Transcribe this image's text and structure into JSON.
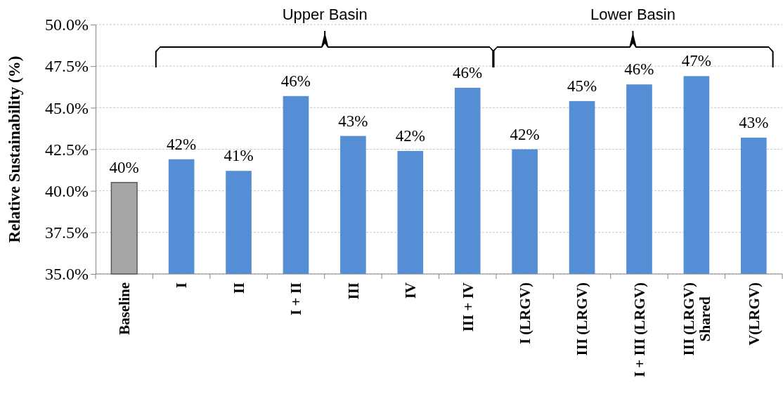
{
  "chart_data": {
    "type": "bar",
    "ylabel": "Relative Sustainability (%)",
    "categories": [
      "Baseline",
      "I",
      "II",
      "I + II",
      "III",
      "IV",
      "III + IV",
      "I (LRGV)",
      "III (LRGV)",
      "I + III (LRGV)",
      "III (LRGV)\nShared",
      "V(LRGV)"
    ],
    "values": [
      40.5,
      41.9,
      41.2,
      45.7,
      43.3,
      42.4,
      46.2,
      42.5,
      45.4,
      46.4,
      46.9,
      43.2
    ],
    "colors": [
      "#a6a6a6",
      "#558ed5",
      "#558ed5",
      "#558ed5",
      "#558ed5",
      "#558ed5",
      "#558ed5",
      "#558ed5",
      "#558ed5",
      "#558ed5",
      "#558ed5",
      "#558ed5"
    ],
    "value_labels": [
      "40%",
      "42%",
      "41%",
      "46%",
      "43%",
      "42%",
      "46%",
      "42%",
      "45%",
      "46%",
      "47%",
      "43%"
    ],
    "ylim": [
      35,
      50
    ],
    "yticks": [
      {
        "value": 35,
        "label": "35.0%"
      },
      {
        "value": 37.5,
        "label": "37.5%"
      },
      {
        "value": 40,
        "label": "40.0%"
      },
      {
        "value": 42.5,
        "label": "42.5%"
      },
      {
        "value": 45,
        "label": "45.0%"
      },
      {
        "value": 47.5,
        "label": "47.5%"
      },
      {
        "value": 50,
        "label": "50.0%"
      }
    ],
    "grid": "y",
    "annotations": [
      "Upper Basin",
      "Lower Basin"
    ]
  }
}
